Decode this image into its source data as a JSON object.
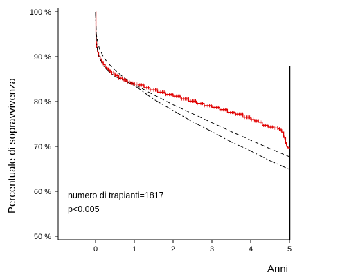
{
  "chart_data": {
    "type": "line",
    "title": "",
    "xlabel": "Anni",
    "ylabel": "Percentuale di sopravvivenza",
    "xlim": [
      -1,
      5
    ],
    "ylim": [
      48,
      100
    ],
    "x_ticks": [
      0,
      1,
      2,
      3,
      4,
      5
    ],
    "x_tick_labels": [
      "0",
      "1",
      "2",
      "3",
      "4",
      "5"
    ],
    "y_ticks": [
      50,
      60,
      70,
      80,
      90,
      100
    ],
    "y_tick_labels": [
      "50 %",
      "60 %",
      "70 %",
      "80 %",
      "90 %",
      "100 %"
    ],
    "grid": false,
    "annotations": [
      "numero di trapianti=1817",
      "p<0.005"
    ],
    "series": [
      {
        "style": "step-censored",
        "color": "#e00000",
        "x": [
          0,
          0.01,
          0.02,
          0.03,
          0.05,
          0.08,
          0.12,
          0.16,
          0.2,
          0.25,
          0.3,
          0.35,
          0.4,
          0.5,
          0.6,
          0.7,
          0.8,
          0.9,
          1.0,
          1.1,
          1.25,
          1.4,
          1.6,
          1.8,
          2.0,
          2.2,
          2.4,
          2.6,
          2.8,
          3.0,
          3.2,
          3.4,
          3.6,
          3.8,
          4.0,
          4.1,
          4.2,
          4.3,
          4.45,
          4.6,
          4.7,
          4.75,
          4.8,
          4.85,
          4.9,
          4.93,
          4.96,
          5.0
        ],
        "y": [
          100,
          95,
          93,
          92,
          91,
          90,
          89.2,
          88.7,
          88.2,
          87.6,
          87.2,
          86.8,
          86.4,
          85.8,
          85.2,
          84.8,
          84.4,
          84.1,
          83.9,
          83.7,
          83.1,
          82.6,
          82.1,
          81.6,
          81.2,
          80.6,
          80.1,
          79.6,
          79.1,
          78.7,
          78.2,
          77.6,
          77.2,
          76.5,
          76.0,
          75.7,
          75.4,
          74.7,
          74.3,
          74.1,
          73.9,
          73.7,
          73.2,
          72.0,
          70.6,
          70.0,
          69.7,
          69.4
        ]
      },
      {
        "style": "dashed",
        "color": "#000000",
        "x": [
          0,
          0.02,
          0.05,
          0.1,
          0.2,
          0.3,
          0.5,
          0.75,
          1,
          1.5,
          2,
          2.5,
          3,
          3.5,
          4,
          4.5,
          5
        ],
        "y": [
          100,
          95,
          93.5,
          91.8,
          90.0,
          88.8,
          87.0,
          85.2,
          83.8,
          81.5,
          79.3,
          77.3,
          75.3,
          73.3,
          71.4,
          69.5,
          67.7
        ]
      },
      {
        "style": "dashdot",
        "color": "#000000",
        "x": [
          0,
          0.02,
          0.05,
          0.1,
          0.2,
          0.3,
          0.5,
          0.75,
          1,
          1.5,
          2,
          2.5,
          3,
          3.5,
          4,
          4.5,
          5
        ],
        "y": [
          100,
          93.5,
          91.5,
          89.8,
          88.0,
          87.0,
          85.6,
          84.6,
          83.6,
          80.5,
          78.0,
          75.5,
          73.3,
          71.0,
          69.0,
          66.8,
          64.9
        ]
      }
    ]
  }
}
